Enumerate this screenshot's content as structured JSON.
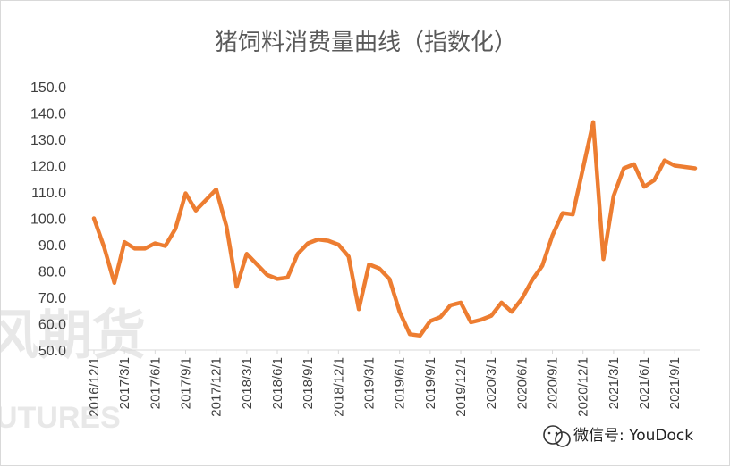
{
  "chart_data": {
    "type": "line",
    "title": "猪饲料消费量曲线（指数化）",
    "ylim": [
      50,
      150
    ],
    "yticks": [
      "150.0",
      "140.0",
      "130.0",
      "120.0",
      "110.0",
      "100.0",
      "90.0",
      "80.0",
      "70.0",
      "60.0",
      "50.0"
    ],
    "xtick_labels": [
      "2016/12/1",
      "2017/3/1",
      "2017/6/1",
      "2017/9/1",
      "2017/12/1",
      "2018/3/1",
      "2018/6/1",
      "2018/9/1",
      "2018/12/1",
      "2019/3/1",
      "2019/6/1",
      "2019/9/1",
      "2019/12/1",
      "2020/3/1",
      "2020/6/1",
      "2020/9/1",
      "2020/12/1",
      "2021/3/1",
      "2021/6/1",
      "2021/9/1"
    ],
    "grid": false,
    "color": "#ed7d31",
    "series": [
      {
        "x": [
          "2016/12/1",
          "2017/1/1",
          "2017/2/1",
          "2017/3/1",
          "2017/4/1",
          "2017/5/1",
          "2017/6/1",
          "2017/7/1",
          "2017/8/1",
          "2017/9/1",
          "2017/10/1",
          "2017/11/1",
          "2017/12/1",
          "2018/1/1",
          "2018/2/1",
          "2018/3/1",
          "2018/4/1",
          "2018/5/1",
          "2018/6/1",
          "2018/7/1",
          "2018/8/1",
          "2018/9/1",
          "2018/10/1",
          "2018/11/1",
          "2018/12/1",
          "2019/1/1",
          "2019/2/1",
          "2019/3/1",
          "2019/4/1",
          "2019/5/1",
          "2019/6/1",
          "2019/7/1",
          "2019/8/1",
          "2019/9/1",
          "2019/10/1",
          "2019/11/1",
          "2019/12/1",
          "2020/1/1",
          "2020/2/1",
          "2020/3/1",
          "2020/4/1",
          "2020/5/1",
          "2020/6/1",
          "2020/7/1",
          "2020/8/1",
          "2020/9/1",
          "2020/10/1",
          "2020/11/1",
          "2020/12/1",
          "2021/1/1",
          "2021/2/1",
          "2021/3/1",
          "2021/4/1",
          "2021/5/1",
          "2021/6/1",
          "2021/7/1",
          "2021/8/1",
          "2021/9/1",
          "2021/10/1",
          "2021/11/1"
        ],
        "values": [
          100.0,
          89.0,
          75.5,
          91.0,
          88.5,
          88.5,
          90.5,
          89.5,
          96.0,
          109.5,
          103.0,
          107.0,
          111.0,
          97.0,
          74.0,
          86.5,
          82.5,
          78.5,
          77.0,
          77.5,
          86.5,
          90.5,
          92.0,
          91.5,
          90.0,
          85.5,
          65.5,
          82.5,
          81.0,
          77.0,
          64.5,
          56.0,
          55.5,
          61.0,
          62.5,
          67.0,
          68.0,
          60.5,
          61.5,
          63.0,
          68.0,
          64.5,
          69.5,
          76.5,
          82.0,
          93.5,
          102.0,
          101.5,
          119.0,
          136.5,
          84.5,
          108.5,
          119.0,
          120.5,
          112.0,
          114.5,
          122.0,
          120.0,
          119.5,
          119.0
        ]
      }
    ]
  },
  "watermark": {
    "cn": "风期货",
    "en": "UTURES"
  },
  "credit": {
    "icon": "wechat-icon",
    "text": "微信号: YouDock"
  }
}
